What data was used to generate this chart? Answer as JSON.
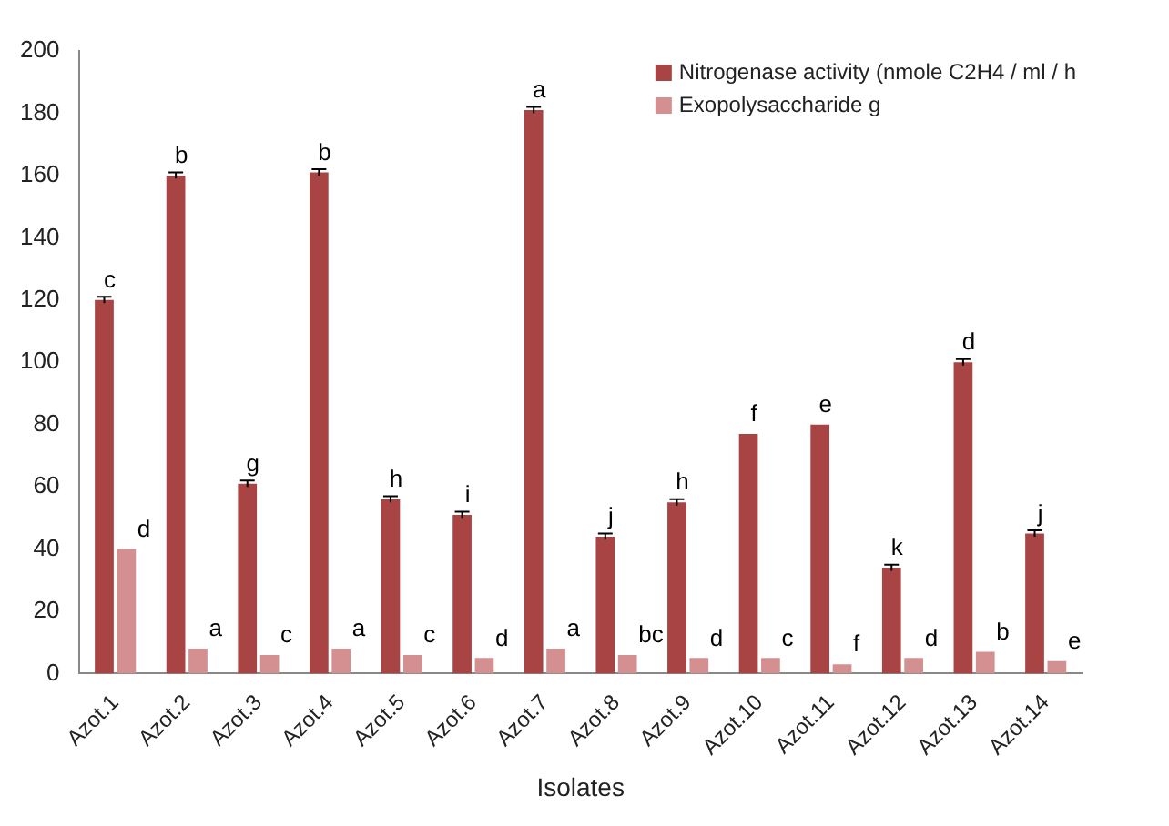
{
  "chart_data": {
    "type": "bar",
    "xlabel": "Isolates",
    "categories": [
      "Azot.1",
      "Azot.2",
      "Azot.3",
      "Azot.4",
      "Azot.5",
      "Azot.6",
      "Azot.7",
      "Azot.8",
      "Azot.9",
      "Azot.10",
      "Azot.11",
      "Azot.12",
      "Azot.13",
      "Azot.14"
    ],
    "series": [
      {
        "name": "Nitrogenase activity (nmole C2H4 / ml / h",
        "color": "#a84444",
        "values": [
          120,
          160,
          61,
          161,
          56,
          51,
          181,
          44,
          55,
          77,
          80,
          34,
          100,
          45
        ],
        "errors": [
          1,
          1,
          1,
          1,
          1,
          1,
          1,
          1,
          1,
          null,
          null,
          1,
          1,
          1
        ]
      },
      {
        "name": "Exopolysaccharide g",
        "color": "#d49090",
        "values": [
          40,
          8,
          6,
          8,
          6,
          5,
          8,
          6,
          5,
          5,
          3,
          5,
          7,
          4
        ]
      }
    ],
    "ylim": [
      0,
      200
    ],
    "yticks": [
      0,
      20,
      40,
      60,
      80,
      100,
      120,
      140,
      160,
      180,
      200
    ],
    "grid": false,
    "legend": "top right",
    "annotations": [
      {
        "text": "c",
        "x": "Azot.1",
        "y": 120
      },
      {
        "text": "b",
        "x": "Azot.2",
        "y": 160
      },
      {
        "text": "g",
        "x": "Azot.3",
        "y": 61
      },
      {
        "text": "b",
        "x": "Azot.4",
        "y": 161
      },
      {
        "text": "h",
        "x": "Azot.5",
        "y": 56
      },
      {
        "text": "i",
        "x": "Azot.6",
        "y": 51
      },
      {
        "text": "a",
        "x": "Azot.7",
        "y": 181
      },
      {
        "text": "j",
        "x": "Azot.8",
        "y": 44
      },
      {
        "text": "h",
        "x": "Azot.9",
        "y": 55
      },
      {
        "text": "f",
        "x": "Azot.10",
        "y": 77
      },
      {
        "text": "e",
        "x": "Azot.11",
        "y": 80
      },
      {
        "text": "k",
        "x": "Azot.12",
        "y": 34
      },
      {
        "text": "d",
        "x": "Azot.13",
        "y": 100
      },
      {
        "text": "j",
        "x": "Azot.14",
        "y": 45
      },
      {
        "text": "d",
        "x": "Azot.1",
        "y": 40
      },
      {
        "text": "a",
        "x": "Azot.2",
        "y": 8
      },
      {
        "text": "c",
        "x": "Azot.3",
        "y": 6
      },
      {
        "text": "a",
        "x": "Azot.4",
        "y": 8
      },
      {
        "text": "c",
        "x": "Azot.5",
        "y": 6
      },
      {
        "text": "d",
        "x": "Azot.6",
        "y": 5
      },
      {
        "text": "a",
        "x": "Azot.7",
        "y": 8
      },
      {
        "text": "bc",
        "x": "Azot.8",
        "y": 6
      },
      {
        "text": "d",
        "x": "Azot.9",
        "y": 5
      },
      {
        "text": "c",
        "x": "Azot.10",
        "y": 5
      },
      {
        "text": "f",
        "x": "Azot.11",
        "y": 3
      },
      {
        "text": "d",
        "x": "Azot.12",
        "y": 5
      },
      {
        "text": "b",
        "x": "Azot.13",
        "y": 7
      },
      {
        "text": "e",
        "x": "Azot.14",
        "y": 4
      }
    ]
  }
}
